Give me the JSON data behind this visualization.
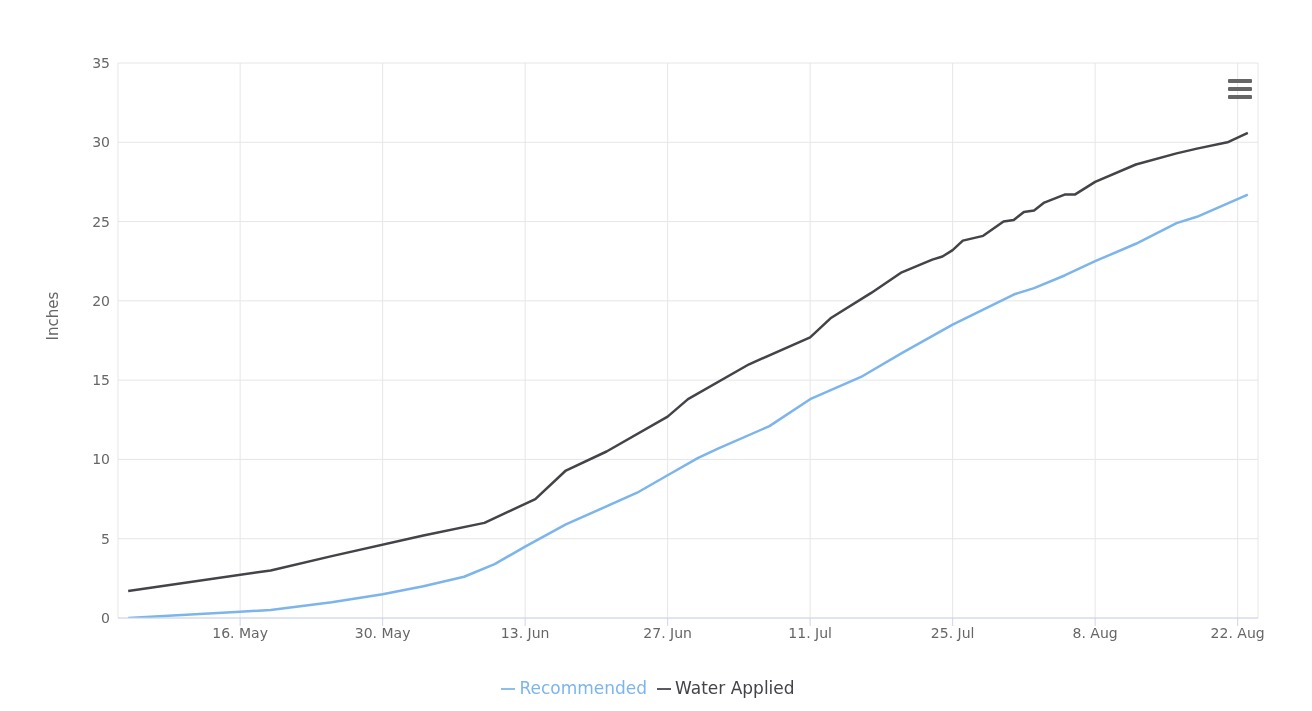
{
  "chart_data": {
    "type": "line",
    "ylabel": "Inches",
    "xlim": [
      "--05-04",
      "--08-24"
    ],
    "ylim": [
      0,
      35
    ],
    "yticks": [
      0,
      5,
      10,
      15,
      20,
      25,
      30,
      35
    ],
    "xticks": [
      {
        "value": "--05-16",
        "label": "16. May"
      },
      {
        "value": "--05-30",
        "label": "30. May"
      },
      {
        "value": "--06-13",
        "label": "13. Jun"
      },
      {
        "value": "--06-27",
        "label": "27. Jun"
      },
      {
        "value": "--07-11",
        "label": "11. Jul"
      },
      {
        "value": "--07-25",
        "label": "25. Jul"
      },
      {
        "value": "--08-08",
        "label": "8. Aug"
      },
      {
        "value": "--08-22",
        "label": "22. Aug"
      }
    ],
    "grid": true,
    "legend": "bottom",
    "marker": "none",
    "line_style": "solid",
    "series": [
      {
        "name": "Recommended",
        "color": "#7cb5ec",
        "x": [
          "--05-05",
          "--05-16",
          "--05-19",
          "--05-25",
          "--05-30",
          "--06-03",
          "--06-07",
          "--06-10",
          "--06-13",
          "--06-17",
          "--06-24",
          "--06-27",
          "--06-30",
          "--07-02",
          "--07-07",
          "--07-11",
          "--07-16",
          "--07-20",
          "--07-25",
          "--07-31",
          "--08-02",
          "--08-05",
          "--08-08",
          "--08-12",
          "--08-16",
          "--08-18",
          "--08-23"
        ],
        "values": [
          0,
          0.4,
          0.5,
          1.0,
          1.5,
          2.0,
          2.6,
          3.4,
          4.5,
          5.9,
          7.9,
          9.0,
          10.1,
          10.7,
          12.1,
          13.8,
          15.2,
          16.7,
          18.5,
          20.4,
          20.8,
          21.6,
          22.5,
          23.6,
          24.9,
          25.3,
          26.7
        ]
      },
      {
        "name": "Water Applied",
        "color": "#434348",
        "x": [
          "--05-05",
          "--05-19",
          "--05-25",
          "--06-03",
          "--06-09",
          "--06-14",
          "--06-17",
          "--06-21",
          "--06-27",
          "--06-29",
          "--07-05",
          "--07-11",
          "--07-13",
          "--07-17",
          "--07-20",
          "--07-23",
          "--07-24",
          "--07-25",
          "--07-26",
          "--07-28",
          "--07-30",
          "--07-31",
          "--08-01",
          "--08-02",
          "--08-03",
          "--08-05",
          "--08-06",
          "--08-08",
          "--08-12",
          "--08-16",
          "--08-18",
          "--08-21",
          "--08-23"
        ],
        "values": [
          1.7,
          3.0,
          3.9,
          5.2,
          6.0,
          7.5,
          9.3,
          10.5,
          12.7,
          13.8,
          16.0,
          17.7,
          18.9,
          20.5,
          21.8,
          22.6,
          22.8,
          23.2,
          23.8,
          24.1,
          25.0,
          25.1,
          25.6,
          25.7,
          26.2,
          26.7,
          26.7,
          27.5,
          28.6,
          29.3,
          29.6,
          30.0,
          30.6
        ]
      }
    ]
  }
}
